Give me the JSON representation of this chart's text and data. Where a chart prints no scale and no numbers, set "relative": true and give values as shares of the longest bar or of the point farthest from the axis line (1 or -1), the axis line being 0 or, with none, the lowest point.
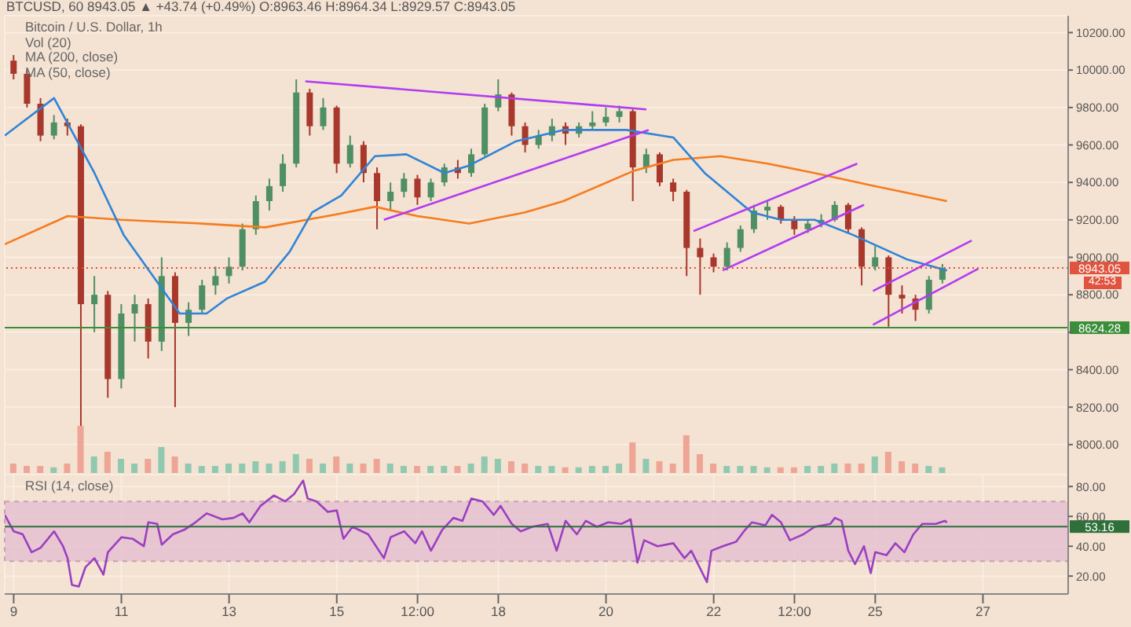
{
  "chart_data": [
    {
      "type": "candlestick",
      "title": "BTCUSD, 60  8943.05 ▲ +43.74 (+0.49%) O:8963.46 H:8964.34 L:8929.57 C:8943.05",
      "subtitle": "Bitcoin / U.S. Dollar, 1h",
      "annotations": [
        "Vol (20)",
        "MA (200, close)",
        "MA (50, close)",
        "42:53"
      ],
      "x": [
        "--05-09T00:00",
        "--05-09T06:00",
        "--05-09T12:00",
        "--05-09T18:00",
        "--05-10T00:00",
        "--05-10T06:00",
        "--05-10T12:00",
        "--05-10T18:00",
        "--05-11T00:00",
        "--05-11T06:00",
        "--05-11T12:00",
        "--05-11T18:00",
        "--05-12T00:00",
        "--05-12T06:00",
        "--05-12T12:00",
        "--05-12T18:00",
        "--05-13T00:00",
        "--05-13T06:00",
        "--05-13T12:00",
        "--05-13T18:00",
        "--05-14T00:00",
        "--05-14T06:00",
        "--05-14T12:00",
        "--05-14T18:00",
        "--05-15T00:00",
        "--05-15T06:00",
        "--05-15T12:00",
        "--05-15T18:00",
        "--05-16T00:00",
        "--05-16T06:00",
        "--05-16T12:00",
        "--05-16T18:00",
        "--05-17T00:00",
        "--05-17T06:00",
        "--05-17T12:00",
        "--05-17T18:00",
        "--05-18T00:00",
        "--05-18T06:00",
        "--05-18T12:00",
        "--05-18T18:00",
        "--05-19T00:00",
        "--05-19T06:00",
        "--05-19T12:00",
        "--05-19T18:00",
        "--05-20T00:00",
        "--05-20T06:00",
        "--05-20T12:00",
        "--05-20T18:00",
        "--05-21T00:00",
        "--05-21T06:00",
        "--05-21T12:00",
        "--05-21T18:00",
        "--05-22T00:00",
        "--05-22T06:00",
        "--05-22T12:00",
        "--05-22T18:00",
        "--05-23T00:00",
        "--05-23T06:00",
        "--05-23T12:00",
        "--05-23T18:00",
        "--05-24T00:00",
        "--05-24T06:00",
        "--05-24T12:00",
        "--05-24T18:00",
        "--05-25T00:00",
        "--05-25T06:00",
        "--05-25T12:00",
        "--05-25T18:00",
        "--05-26T00:00",
        "--05-26T06:00"
      ],
      "ohlc": [
        [
          10050,
          10080,
          9950,
          9980
        ],
        [
          9980,
          10000,
          9800,
          9820
        ],
        [
          9820,
          9850,
          9620,
          9650
        ],
        [
          9650,
          9760,
          9630,
          9720
        ],
        [
          9720,
          9740,
          9650,
          9700
        ],
        [
          9700,
          9710,
          8100,
          8750
        ],
        [
          8750,
          8900,
          8600,
          8800
        ],
        [
          8800,
          8820,
          8250,
          8350
        ],
        [
          8350,
          8750,
          8300,
          8700
        ],
        [
          8700,
          8800,
          8550,
          8750
        ],
        [
          8750,
          8780,
          8460,
          8550
        ],
        [
          8550,
          9000,
          8500,
          8900
        ],
        [
          8900,
          8920,
          8200,
          8650
        ],
        [
          8650,
          8760,
          8580,
          8720
        ],
        [
          8720,
          8880,
          8700,
          8850
        ],
        [
          8850,
          8950,
          8800,
          8900
        ],
        [
          8900,
          9000,
          8860,
          8950
        ],
        [
          8950,
          9180,
          8930,
          9150
        ],
        [
          9150,
          9330,
          9120,
          9300
        ],
        [
          9300,
          9420,
          9250,
          9380
        ],
        [
          9380,
          9550,
          9350,
          9500
        ],
        [
          9500,
          9950,
          9480,
          9880
        ],
        [
          9880,
          9900,
          9650,
          9700
        ],
        [
          9700,
          9850,
          9680,
          9800
        ],
        [
          9800,
          9810,
          9450,
          9500
        ],
        [
          9500,
          9650,
          9480,
          9600
        ],
        [
          9600,
          9620,
          9400,
          9450
        ],
        [
          9450,
          9480,
          9150,
          9300
        ],
        [
          9300,
          9400,
          9250,
          9350
        ],
        [
          9350,
          9450,
          9320,
          9420
        ],
        [
          9420,
          9440,
          9280,
          9320
        ],
        [
          9320,
          9420,
          9300,
          9400
        ],
        [
          9400,
          9500,
          9380,
          9480
        ],
        [
          9480,
          9520,
          9420,
          9450
        ],
        [
          9450,
          9580,
          9430,
          9550
        ],
        [
          9550,
          9820,
          9540,
          9800
        ],
        [
          9800,
          9950,
          9780,
          9870
        ],
        [
          9870,
          9880,
          9650,
          9700
        ],
        [
          9700,
          9720,
          9560,
          9600
        ],
        [
          9600,
          9680,
          9580,
          9650
        ],
        [
          9650,
          9740,
          9620,
          9700
        ],
        [
          9700,
          9720,
          9600,
          9660
        ],
        [
          9660,
          9720,
          9640,
          9700
        ],
        [
          9700,
          9780,
          9680,
          9720
        ],
        [
          9720,
          9800,
          9700,
          9750
        ],
        [
          9750,
          9810,
          9720,
          9780
        ],
        [
          9780,
          9790,
          9300,
          9480
        ],
        [
          9480,
          9580,
          9450,
          9550
        ],
        [
          9550,
          9560,
          9380,
          9400
        ],
        [
          9400,
          9420,
          9300,
          9350
        ],
        [
          9350,
          9360,
          8900,
          9050
        ],
        [
          9050,
          9100,
          8800,
          9000
        ],
        [
          9000,
          9020,
          8920,
          8950
        ],
        [
          8950,
          9080,
          8930,
          9050
        ],
        [
          9050,
          9170,
          9030,
          9150
        ],
        [
          9150,
          9280,
          9130,
          9250
        ],
        [
          9250,
          9300,
          9200,
          9270
        ],
        [
          9270,
          9280,
          9180,
          9200
        ],
        [
          9200,
          9220,
          9120,
          9150
        ],
        [
          9150,
          9200,
          9130,
          9180
        ],
        [
          9180,
          9230,
          9160,
          9200
        ],
        [
          9200,
          9300,
          9190,
          9280
        ],
        [
          9280,
          9290,
          9130,
          9150
        ],
        [
          9150,
          9160,
          8850,
          8950
        ],
        [
          8950,
          9060,
          8930,
          9000
        ],
        [
          9000,
          9010,
          8630,
          8800
        ],
        [
          8800,
          8850,
          8700,
          8780
        ],
        [
          8780,
          8800,
          8660,
          8720
        ],
        [
          8720,
          8900,
          8700,
          8880
        ],
        [
          8880,
          8964,
          8860,
          8943
        ]
      ],
      "colors": [
        "#a8382c",
        "#a8382c",
        "#a8382c",
        "#4e8f63",
        "#a8382c",
        "#a8382c",
        "#4e8f63",
        "#a8382c",
        "#4e8f63",
        "#4e8f63",
        "#a8382c",
        "#4e8f63",
        "#a8382c",
        "#4e8f63",
        "#4e8f63",
        "#4e8f63",
        "#4e8f63",
        "#4e8f63",
        "#4e8f63",
        "#4e8f63",
        "#4e8f63",
        "#4e8f63",
        "#a8382c",
        "#4e8f63",
        "#a8382c",
        "#4e8f63",
        "#a8382c",
        "#a8382c",
        "#4e8f63",
        "#4e8f63",
        "#a8382c",
        "#4e8f63",
        "#4e8f63",
        "#a8382c",
        "#4e8f63",
        "#4e8f63",
        "#4e8f63",
        "#a8382c",
        "#a8382c",
        "#4e8f63",
        "#4e8f63",
        "#a8382c",
        "#4e8f63",
        "#4e8f63",
        "#4e8f63",
        "#4e8f63",
        "#a8382c",
        "#4e8f63",
        "#a8382c",
        "#a8382c",
        "#a8382c",
        "#a8382c",
        "#a8382c",
        "#4e8f63",
        "#4e8f63",
        "#4e8f63",
        "#4e8f63",
        "#a8382c",
        "#a8382c",
        "#4e8f63",
        "#4e8f63",
        "#4e8f63",
        "#a8382c",
        "#a8382c",
        "#4e8f63",
        "#a8382c",
        "#a8382c",
        "#a8382c",
        "#4e8f63",
        "#4e8f63"
      ],
      "series": [
        {
          "type": "line",
          "color": "#f57c1f",
          "x": [
            "--05-08T20:00",
            "--05-10T00:00",
            "--05-11T00:00",
            "--05-12T12:00",
            "--05-13T16:00",
            "--05-15T00:00",
            "--05-15T17:00",
            "--05-16T12:00",
            "--05-17T11:00",
            "--05-18T12:00",
            "--05-19T05:00",
            "--05-20T12:00",
            "--05-21T06:00",
            "--05-22T03:00",
            "--05-23T00:00",
            "--05-23T21:00",
            "--05-25T00:00",
            "--05-26T08:00"
          ],
          "values": [
            9070,
            9220,
            9200,
            9180,
            9160,
            9230,
            9270,
            9220,
            9180,
            9240,
            9300,
            9460,
            9520,
            9540,
            9500,
            9450,
            9380,
            9300
          ]
        },
        {
          "type": "line",
          "color": "#2f84d6",
          "x": [
            "--05-08T20:00",
            "--05-09T18:00",
            "--05-10T12:00",
            "--05-11T01:00",
            "--05-12T02:00",
            "--05-12T14:00",
            "--05-12T23:00",
            "--05-13T16:00",
            "--05-14T03:00",
            "--05-14T13:00",
            "--05-15T02:00",
            "--05-15T17:00",
            "--05-16T07:00",
            "--05-17T00:00",
            "--05-17T11:00",
            "--05-18T08:00",
            "--05-18T22:00",
            "--05-19T05:00",
            "--05-20T09:00",
            "--05-21T06:00",
            "--05-21T20:00",
            "--05-22T17:00",
            "--05-23T06:00",
            "--05-23T21:00",
            "--05-24T14:00",
            "--05-25T14:00",
            "--05-26T08:00"
          ],
          "values": [
            9650,
            9850,
            9450,
            9120,
            8700,
            8700,
            8780,
            8870,
            9030,
            9240,
            9330,
            9540,
            9550,
            9450,
            9490,
            9620,
            9660,
            9680,
            9680,
            9640,
            9450,
            9240,
            9200,
            9200,
            9120,
            8990,
            8930
          ]
        },
        {
          "type": "line",
          "color": "#b13cf2",
          "x": [
            "--05-14T10:00",
            "--05-20T18:00"
          ],
          "values": [
            9940,
            9790
          ]
        },
        {
          "type": "line",
          "color": "#b13cf2",
          "x": [
            "--05-15T21:00",
            "--05-20T19:00"
          ],
          "values": [
            9200,
            9680
          ]
        },
        {
          "type": "line",
          "color": "#b13cf2",
          "x": [
            "--05-21T15:00",
            "--05-24T16:00"
          ],
          "values": [
            9140,
            9500
          ]
        },
        {
          "type": "line",
          "color": "#b13cf2",
          "x": [
            "--05-22T04:00",
            "--05-24T19:00"
          ],
          "values": [
            8930,
            9280
          ]
        },
        {
          "type": "line",
          "color": "#b13cf2",
          "x": [
            "--05-24T23:00",
            "--05-26T19:00"
          ],
          "values": [
            8820,
            9090
          ]
        },
        {
          "type": "line",
          "color": "#b13cf2",
          "x": [
            "--05-24T23:00",
            "--05-26T22:00"
          ],
          "values": [
            8640,
            8940
          ]
        }
      ],
      "ref_lines": [
        {
          "axis": "y",
          "value": 8943.05,
          "label": "8943.05",
          "color": "#e0533f",
          "line_style": "dotted"
        },
        {
          "axis": "y",
          "value": 8624.28,
          "label": "8624.28",
          "color": "#3a8e3a",
          "line_style": "solid"
        }
      ],
      "xlim": [
        "--05-08T20:00",
        "--05-28T14:00"
      ],
      "xticks": [
        {
          "value": "--05-09",
          "label": "9"
        },
        {
          "value": "--05-11",
          "label": "11"
        },
        {
          "value": "--05-13",
          "label": "13"
        },
        {
          "value": "--05-15",
          "label": "15"
        },
        {
          "value": "--05-16T12:00",
          "label": "12:00"
        },
        {
          "value": "--05-18",
          "label": "18"
        },
        {
          "value": "--05-20",
          "label": "20"
        },
        {
          "value": "--05-22",
          "label": "22"
        },
        {
          "value": "--05-23T12:00",
          "label": "12:00"
        },
        {
          "value": "--05-25",
          "label": "25"
        },
        {
          "value": "--05-27",
          "label": "27"
        }
      ],
      "ylim": [
        7840,
        10290
      ],
      "yticks": [
        {
          "value": 8000,
          "label": "8000.00"
        },
        {
          "value": 8200,
          "label": "8200.00"
        },
        {
          "value": 8400,
          "label": "8400.00"
        },
        {
          "value": 8600,
          "label": null
        },
        {
          "value": 8800,
          "label": "8800.00"
        },
        {
          "value": 9000,
          "label": "9000.00"
        },
        {
          "value": 9200,
          "label": "9200.00"
        },
        {
          "value": 9400,
          "label": "9400.00"
        },
        {
          "value": 9600,
          "label": "9600.00"
        },
        {
          "value": 9800,
          "label": "9800.00"
        },
        {
          "value": 10000,
          "label": "10000.00"
        },
        {
          "value": 10200,
          "label": "10200.00"
        }
      ],
      "tick_labels": "y",
      "grid": true
    },
    {
      "type": "bar",
      "relative": true,
      "tick_labels": false,
      "xlim": [
        "--05-08T20:00",
        "--05-28T14:00"
      ],
      "x": [
        "--05-09T00:00",
        "--05-09T06:00",
        "--05-09T12:00",
        "--05-09T18:00",
        "--05-10T00:00",
        "--05-10T06:00",
        "--05-10T12:00",
        "--05-10T18:00",
        "--05-11T00:00",
        "--05-11T06:00",
        "--05-11T12:00",
        "--05-11T18:00",
        "--05-12T00:00",
        "--05-12T06:00",
        "--05-12T12:00",
        "--05-12T18:00",
        "--05-13T00:00",
        "--05-13T06:00",
        "--05-13T12:00",
        "--05-13T18:00",
        "--05-14T00:00",
        "--05-14T06:00",
        "--05-14T12:00",
        "--05-14T18:00",
        "--05-15T00:00",
        "--05-15T06:00",
        "--05-15T12:00",
        "--05-15T18:00",
        "--05-16T00:00",
        "--05-16T06:00",
        "--05-16T12:00",
        "--05-16T18:00",
        "--05-17T00:00",
        "--05-17T06:00",
        "--05-17T12:00",
        "--05-17T18:00",
        "--05-18T00:00",
        "--05-18T06:00",
        "--05-18T12:00",
        "--05-18T18:00",
        "--05-19T00:00",
        "--05-19T06:00",
        "--05-19T12:00",
        "--05-19T18:00",
        "--05-20T00:00",
        "--05-20T06:00",
        "--05-20T12:00",
        "--05-20T18:00",
        "--05-21T00:00",
        "--05-21T06:00",
        "--05-21T12:00",
        "--05-21T18:00",
        "--05-22T00:00",
        "--05-22T06:00",
        "--05-22T12:00",
        "--05-22T18:00",
        "--05-23T00:00",
        "--05-23T06:00",
        "--05-23T12:00",
        "--05-23T18:00",
        "--05-24T00:00",
        "--05-24T06:00",
        "--05-24T12:00",
        "--05-24T18:00",
        "--05-25T00:00",
        "--05-25T06:00",
        "--05-25T12:00",
        "--05-25T18:00",
        "--05-26T00:00",
        "--05-26T06:00"
      ],
      "values": [
        0.2,
        0.15,
        0.15,
        0.12,
        0.2,
        1,
        0.35,
        0.45,
        0.3,
        0.2,
        0.3,
        0.55,
        0.35,
        0.2,
        0.15,
        0.15,
        0.2,
        0.2,
        0.25,
        0.2,
        0.25,
        0.4,
        0.3,
        0.2,
        0.35,
        0.2,
        0.2,
        0.3,
        0.2,
        0.15,
        0.15,
        0.15,
        0.15,
        0.15,
        0.2,
        0.35,
        0.3,
        0.25,
        0.2,
        0.15,
        0.15,
        0.12,
        0.12,
        0.15,
        0.15,
        0.2,
        0.65,
        0.3,
        0.25,
        0.2,
        0.8,
        0.4,
        0.2,
        0.15,
        0.15,
        0.15,
        0.12,
        0.12,
        0.12,
        0.15,
        0.15,
        0.2,
        0.2,
        0.2,
        0.35,
        0.45,
        0.25,
        0.2,
        0.15,
        0.12
      ],
      "colors": [
        "#eea595",
        "#eea595",
        "#eea595",
        "#90c9b0",
        "#eea595",
        "#eea595",
        "#90c9b0",
        "#eea595",
        "#90c9b0",
        "#90c9b0",
        "#eea595",
        "#90c9b0",
        "#eea595",
        "#90c9b0",
        "#90c9b0",
        "#90c9b0",
        "#90c9b0",
        "#90c9b0",
        "#90c9b0",
        "#90c9b0",
        "#90c9b0",
        "#90c9b0",
        "#eea595",
        "#90c9b0",
        "#eea595",
        "#90c9b0",
        "#eea595",
        "#eea595",
        "#90c9b0",
        "#90c9b0",
        "#eea595",
        "#90c9b0",
        "#90c9b0",
        "#eea595",
        "#90c9b0",
        "#90c9b0",
        "#90c9b0",
        "#eea595",
        "#eea595",
        "#90c9b0",
        "#90c9b0",
        "#eea595",
        "#90c9b0",
        "#90c9b0",
        "#90c9b0",
        "#90c9b0",
        "#eea595",
        "#90c9b0",
        "#eea595",
        "#eea595",
        "#eea595",
        "#eea595",
        "#eea595",
        "#90c9b0",
        "#90c9b0",
        "#90c9b0",
        "#90c9b0",
        "#eea595",
        "#eea595",
        "#90c9b0",
        "#90c9b0",
        "#90c9b0",
        "#eea595",
        "#eea595",
        "#90c9b0",
        "#eea595",
        "#eea595",
        "#eea595",
        "#90c9b0",
        "#90c9b0"
      ]
    },
    {
      "type": "line",
      "annotations": [
        "RSI (14, close)"
      ],
      "series": [
        {
          "color": "#9b3fc0",
          "x": [
            "--05-08T20:00",
            "--05-09T00:00",
            "--05-09T04:00",
            "--05-09T08:00",
            "--05-09T12:00",
            "--05-09T18:00",
            "--05-09T22:00",
            "--05-10T00:00",
            "--05-10T02:00",
            "--05-10T05:00",
            "--05-10T08:00",
            "--05-10T12:00",
            "--05-10T16:00",
            "--05-10T18:00",
            "--05-11T00:00",
            "--05-11T05:00",
            "--05-11T10:00",
            "--05-11T12:00",
            "--05-11T16:00",
            "--05-11T18:00",
            "--05-11T23:00",
            "--05-12T04:00",
            "--05-12T09:00",
            "--05-12T14:00",
            "--05-12T21:00",
            "--05-13T02:00",
            "--05-13T06:00",
            "--05-13T09:00",
            "--05-13T14:00",
            "--05-13T20:00",
            "--05-14T01:00",
            "--05-14T05:00",
            "--05-14T09:00",
            "--05-14T11:00",
            "--05-14T15:00",
            "--05-14T20:00",
            "--05-15T00:00",
            "--05-15T03:00",
            "--05-15T07:00",
            "--05-15T14:00",
            "--05-15T21:00",
            "--05-16T00:00",
            "--05-16T06:00",
            "--05-16T11:00",
            "--05-16T14:00",
            "--05-16T18:00",
            "--05-16T23:00",
            "--05-17T04:00",
            "--05-17T08:00",
            "--05-17T12:00",
            "--05-17T17:00",
            "--05-17T22:00",
            "--05-18T01:00",
            "--05-18T06:00",
            "--05-18T10:00",
            "--05-18T15:00",
            "--05-18T22:00",
            "--05-19T02:00",
            "--05-19T06:00",
            "--05-19T11:00",
            "--05-19T15:00",
            "--05-19T20:00",
            "--05-20T01:00",
            "--05-20T07:00",
            "--05-20T11:00",
            "--05-20T14:00",
            "--05-20T17:00",
            "--05-20T23:00",
            "--05-21T06:00",
            "--05-21T11:00",
            "--05-21T14:00",
            "--05-21T18:00",
            "--05-21T21:00",
            "--05-21T23:00",
            "--05-22T04:00",
            "--05-22T10:00",
            "--05-22T14:00",
            "--05-22T17:00",
            "--05-22T23:00",
            "--05-23T02:00",
            "--05-23T06:00",
            "--05-23T10:00",
            "--05-23T16:00",
            "--05-23T21:00",
            "--05-24T04:00",
            "--05-24T06:00",
            "--05-24T09:00",
            "--05-24T12:00",
            "--05-24T15:00",
            "--05-24T19:00",
            "--05-24T22:00",
            "--05-25T00:00",
            "--05-25T05:00",
            "--05-25T09:00",
            "--05-25T13:00",
            "--05-25T17:00",
            "--05-25T21:00",
            "--05-26T03:00",
            "--05-26T07:00",
            "--05-26T08:00"
          ],
          "values": [
            61,
            50,
            48,
            36,
            39,
            50,
            40,
            32,
            14,
            13,
            26,
            32,
            21,
            36,
            46,
            45,
            40,
            56,
            55,
            41,
            48,
            51,
            56,
            62,
            58,
            59,
            62,
            56,
            67,
            74,
            70,
            75,
            84,
            72,
            70,
            63,
            64,
            45,
            53,
            48,
            32,
            46,
            50,
            42,
            50,
            37,
            51,
            59,
            57,
            72,
            70,
            61,
            67,
            55,
            50,
            53,
            55,
            37,
            57,
            48,
            57,
            53,
            56,
            55,
            58,
            29,
            44,
            40,
            42,
            32,
            37,
            25,
            16,
            37,
            40,
            43,
            51,
            56,
            54,
            61,
            56,
            44,
            48,
            53,
            55,
            59,
            57,
            37,
            28,
            40,
            22,
            36,
            34,
            42,
            36,
            48,
            55,
            55,
            57,
            56
          ]
        }
      ],
      "bands": [
        {
          "axis": "y",
          "from": 30,
          "to": 70,
          "color": "#e6c3d2"
        }
      ],
      "ref_lines": [
        {
          "axis": "y",
          "value": 53.16,
          "label": "53.16",
          "color": "#2f6f3a",
          "line_style": "solid"
        }
      ],
      "xlim": [
        "--05-08T20:00",
        "--05-28T14:00"
      ],
      "xticks": [
        {
          "value": "--05-09",
          "label": "9"
        },
        {
          "value": "--05-11",
          "label": "11"
        },
        {
          "value": "--05-13",
          "label": "13"
        },
        {
          "value": "--05-15",
          "label": "15"
        },
        {
          "value": "--05-16T12:00",
          "label": "12:00"
        },
        {
          "value": "--05-18",
          "label": "18"
        },
        {
          "value": "--05-20",
          "label": "20"
        },
        {
          "value": "--05-22",
          "label": "22"
        },
        {
          "value": "--05-23T12:00",
          "label": "12:00"
        },
        {
          "value": "--05-25",
          "label": "25"
        },
        {
          "value": "--05-27",
          "label": "27"
        }
      ],
      "ylim": [
        8,
        88
      ],
      "yticks": [
        {
          "value": 20,
          "label": "20.00"
        },
        {
          "value": 40,
          "label": "40.00"
        },
        {
          "value": 60,
          "label": "60.00"
        },
        {
          "value": 80,
          "label": "80.00"
        }
      ],
      "grid": true
    }
  ]
}
